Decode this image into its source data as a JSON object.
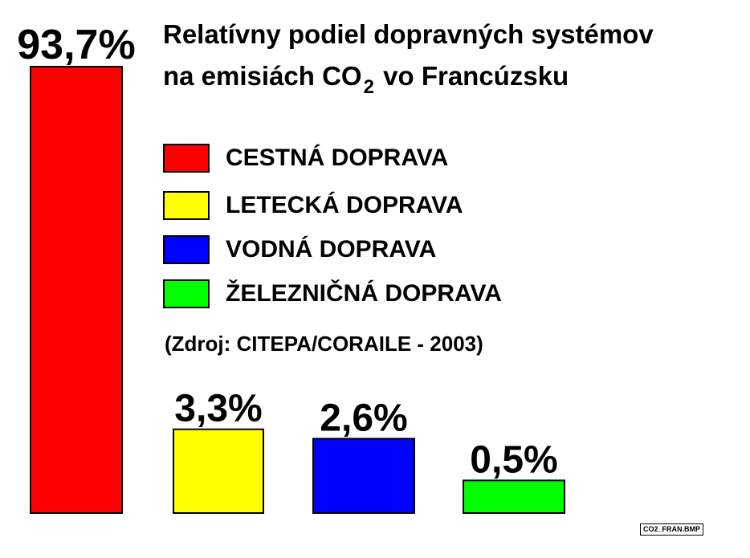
{
  "title_line1": "Relatívny podiel dopravných systémov",
  "title_line2_pre": "na emisiách CO",
  "title_line2_sub": "2",
  "title_line2_post": "vo Francúzsku",
  "source": "(Zdroj: CITEPA/CORAILE - 2003)",
  "filename": "CO2_FRAN.BMP",
  "chart_data": {
    "type": "bar",
    "categories": [
      "CESTNÁ DOPRAVA",
      "LETECKÁ DOPRAVA",
      "VODNÁ DOPRAVA",
      "ŽELEZNIČNÁ DOPRAVA"
    ],
    "values": [
      93.7,
      3.3,
      2.6,
      0.5
    ],
    "value_labels": [
      "93,7%",
      "3,3%",
      "2,6%",
      "0,5%"
    ],
    "colors": [
      "#ff0000",
      "#ffff00",
      "#0000ff",
      "#00ff00"
    ],
    "legend": [
      "CESTNÁ DOPRAVA",
      "LETECKÁ DOPRAVA",
      "VODNÁ DOPRAVA",
      "ŽELEZNIČNÁ DOPRAVA"
    ],
    "legend_placement": "top-right",
    "grid": false
  }
}
